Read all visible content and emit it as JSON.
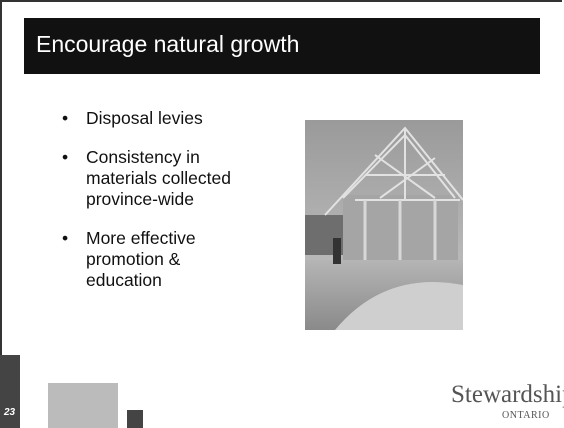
{
  "title": "Encourage natural growth",
  "bullets": [
    "Disposal levies",
    "Consistency in materials collected province-wide",
    "More effective promotion & education"
  ],
  "page_number": "23",
  "logo": {
    "name": "Stewardship",
    "region": "ONTARIO"
  }
}
